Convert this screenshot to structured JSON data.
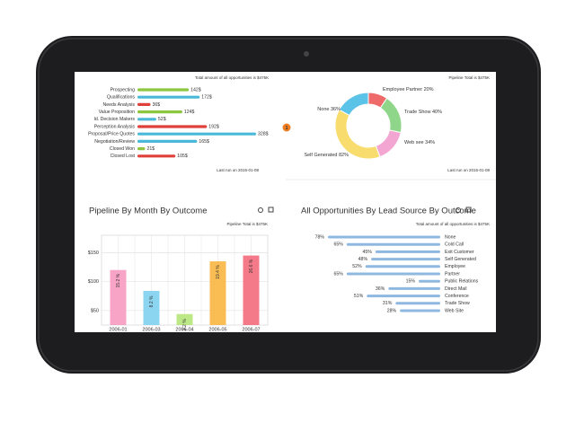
{
  "chart_data": [
    {
      "type": "bar",
      "horizontal": true,
      "subtitle": "Total amount of all opportunities is $475K",
      "categories": [
        "Prospecting",
        "Qualifications",
        "Needs Analysis",
        "Value Proposition",
        "Id. Decision Makers",
        "Perception Analysis",
        "Proposal/Price Quotes",
        "Negotiation/Review",
        "Closed Won",
        "Closed Lost"
      ],
      "values": [
        142,
        172,
        36,
        124,
        52,
        192,
        328,
        165,
        21,
        105
      ],
      "value_labels": [
        "142$",
        "172$",
        "36$",
        "124$",
        "52$",
        "192$",
        "328$",
        "165$",
        "21$",
        "105$"
      ],
      "colors": [
        "#8dc63f",
        "#4ab8d8",
        "#e0403a",
        "#8dc63f",
        "#4ab8d8",
        "#e0403a",
        "#4ab8d8",
        "#4ab8d8",
        "#8dc63f",
        "#e0403a"
      ],
      "badge": "1",
      "footnote": "Last run on 2015-01-08"
    },
    {
      "type": "pie",
      "donut": true,
      "subtitle": "Pipeline Total is $475K",
      "categories": [
        "Employee Partner",
        "Trade Show",
        "Web see",
        "Self Generated",
        "None"
      ],
      "values": [
        20,
        40,
        34,
        82,
        36
      ],
      "value_labels": [
        "20%",
        "40%",
        "34%",
        "82%",
        "36%"
      ],
      "colors": [
        "#ef6b6b",
        "#8fd68a",
        "#f3a6d2",
        "#f8dc6e",
        "#5cc3e8"
      ],
      "footnote": "Last run on 2015-01-08"
    },
    {
      "type": "bar",
      "horizontal": false,
      "title": "Pipeline By Month By Outcome",
      "subtitle": "Pipeline Total is $475K",
      "categories": [
        "2006-01",
        "2006-03",
        "2006-04",
        "2006-05",
        "2006-07"
      ],
      "values": [
        120,
        84,
        44,
        135,
        145
      ],
      "bar_labels": [
        "15.2 %",
        "8.2 %",
        "2.2 %",
        "19.4 %",
        "26.6 %"
      ],
      "colors": [
        "#f79ac0",
        "#7fd0ef",
        "#b5e67a",
        "#f9b640",
        "#f36b7c"
      ],
      "ylim": [
        25,
        180
      ],
      "yticks": [
        {
          "value": 50,
          "label": "$50"
        },
        {
          "value": 100,
          "label": "$100"
        },
        {
          "value": 150,
          "label": "$150"
        }
      ],
      "grid": true
    },
    {
      "type": "bar",
      "horizontal": true,
      "title": "All Opportunities By Lead Source By Outcome",
      "subtitle": "Total amount of all opportunities is $475K",
      "categories": [
        "None",
        "Cold Call",
        "Exit Customer",
        "Self Generated",
        "Employee",
        "Partner",
        "Public Relations",
        "Direct Mail",
        "Conference",
        "Trade Show",
        "Web Site"
      ],
      "values": [
        78,
        65,
        45,
        48,
        52,
        65,
        15,
        36,
        51,
        31,
        28
      ],
      "value_labels": [
        "78%",
        "65%",
        "45%",
        "48%",
        "52%",
        "65%",
        "15%",
        "36%",
        "51%",
        "31%",
        "28%"
      ],
      "color": "#8fb8e0"
    }
  ]
}
